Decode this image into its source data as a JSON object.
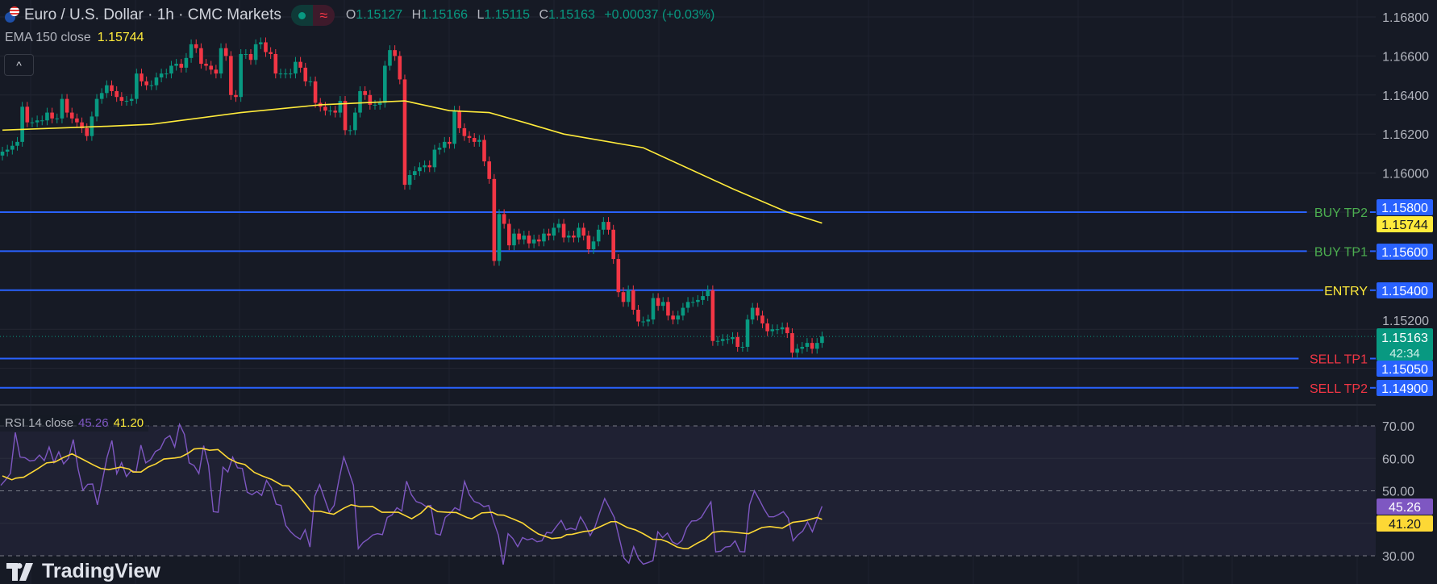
{
  "header": {
    "title": "Euro / U.S. Dollar · 1h · CMC Markets",
    "flag_icon": "eur-usd-flags-icon",
    "market_status_icon": "market-open-dot-icon",
    "data_mode_icon": "approx-wave-icon",
    "ohlc": {
      "o_label": "O",
      "o": "1.15127",
      "h_label": "H",
      "h": "1.15166",
      "l_label": "L",
      "l": "1.15115",
      "c_label": "C",
      "c": "1.15163",
      "change": "+0.00037 (+0.03%)"
    }
  },
  "ema_legend": {
    "label": "EMA 150 close",
    "value": "1.15744"
  },
  "collapse_icon": "^",
  "rsi_legend": {
    "label": "RSI 14 close",
    "rsi": "45.26",
    "ma": "41.20"
  },
  "brand": "TradingView",
  "colors": {
    "bg": "#161a25",
    "up": "#089981",
    "down": "#f23645",
    "ema": "#ffeb3b",
    "level": "#2962ff",
    "rsi": "#7e57c2",
    "rsi_ma": "#fdd835"
  },
  "price_axis": {
    "ticks": [
      "1.16800",
      "1.16600",
      "1.16400",
      "1.16200",
      "1.16000",
      "1.15200"
    ]
  },
  "rsi_axis": {
    "ticks": [
      "70.00",
      "60.00",
      "50.00",
      "30.00"
    ]
  },
  "levels": [
    {
      "label": "BUY TP2",
      "price": "1.15800",
      "color": "#4caf50"
    },
    {
      "label": "BUY TP1",
      "price": "1.15600",
      "color": "#4caf50"
    },
    {
      "label": "ENTRY",
      "price": "1.15400",
      "color": "#ffeb3b"
    },
    {
      "label": "SELL TP1",
      "price": "1.15050",
      "color": "#f23645"
    },
    {
      "label": "SELL TP2",
      "price": "1.14900",
      "color": "#f23645"
    }
  ],
  "ema_badge": "1.15744",
  "last_price": {
    "price": "1.15163",
    "countdown": "42:34"
  },
  "rsi_badges": {
    "rsi": "45.26",
    "ma": "41.20"
  },
  "chart_data": {
    "type": "candlestick",
    "timeframe": "1h",
    "closes": [
      1.1611,
      1.1612,
      1.1614,
      1.1616,
      1.1634,
      1.1626,
      1.1626,
      1.1627,
      1.1627,
      1.1631,
      1.1628,
      1.1628,
      1.1638,
      1.1631,
      1.1628,
      1.1626,
      1.1623,
      1.1619,
      1.1629,
      1.1638,
      1.1641,
      1.1645,
      1.1642,
      1.1639,
      1.1637,
      1.1637,
      1.1638,
      1.1651,
      1.1647,
      1.1645,
      1.1645,
      1.1649,
      1.1651,
      1.1651,
      1.1655,
      1.1656,
      1.1654,
      1.1659,
      1.1666,
      1.1664,
      1.1656,
      1.1655,
      1.1653,
      1.1651,
      1.1664,
      1.166,
      1.164,
      1.1639,
      1.1661,
      1.1661,
      1.1658,
      1.1666,
      1.1667,
      1.1662,
      1.1661,
      1.1651,
      1.1651,
      1.1651,
      1.1651,
      1.1657,
      1.1654,
      1.1647,
      1.1647,
      1.1636,
      1.1634,
      1.1632,
      1.1632,
      1.1631,
      1.1637,
      1.1622,
      1.1622,
      1.1631,
      1.1642,
      1.164,
      1.1635,
      1.1635,
      1.1636,
      1.1655,
      1.1663,
      1.166,
      1.1648,
      1.1594,
      1.1599,
      1.1601,
      1.1603,
      1.1604,
      1.1603,
      1.1612,
      1.1613,
      1.1616,
      1.1615,
      1.1632,
      1.1623,
      1.1619,
      1.1618,
      1.1616,
      1.1617,
      1.1606,
      1.1597,
      1.1555,
      1.1579,
      1.1574,
      1.1563,
      1.1569,
      1.1566,
      1.1568,
      1.1564,
      1.1566,
      1.1565,
      1.1569,
      1.1568,
      1.1572,
      1.1574,
      1.1567,
      1.1568,
      1.1567,
      1.1572,
      1.1568,
      1.1561,
      1.1565,
      1.1571,
      1.1575,
      1.1571,
      1.1556,
      1.1539,
      1.1534,
      1.154,
      1.153,
      1.1524,
      1.1524,
      1.1525,
      1.1536,
      1.1532,
      1.1534,
      1.1527,
      1.1525,
      1.1527,
      1.1531,
      1.1534,
      1.1534,
      1.1535,
      1.1537,
      1.154,
      1.1514,
      1.1514,
      1.1515,
      1.1515,
      1.1516,
      1.1511,
      1.1511,
      1.1525,
      1.1531,
      1.1527,
      1.1523,
      1.1519,
      1.152,
      1.152,
      1.1521,
      1.1518,
      1.1508,
      1.151,
      1.1511,
      1.1513,
      1.151,
      1.1513,
      1.15163
    ],
    "ema150": [
      [
        0,
        1.1622
      ],
      [
        21,
        1.1624
      ],
      [
        30,
        1.1625
      ],
      [
        48,
        1.1631
      ],
      [
        64,
        1.1635
      ],
      [
        81,
        1.1637
      ],
      [
        90,
        1.1632
      ],
      [
        98,
        1.1631
      ],
      [
        105,
        1.1626
      ],
      [
        113,
        1.162
      ],
      [
        129,
        1.1613
      ],
      [
        147,
        1.1592
      ],
      [
        158,
        1.158
      ],
      [
        165,
        1.15744
      ]
    ],
    "price_range": [
      1.1465,
      1.169
    ],
    "rsi": {
      "range": [
        20,
        80
      ],
      "bands": [
        30,
        50,
        70
      ],
      "values": [
        51.7,
        53.4,
        55.4,
        68.0,
        60.4,
        60.2,
        59.2,
        59.4,
        61.0,
        59.3,
        63.5,
        58.7,
        62.0,
        58.3,
        60.0,
        65.8,
        56.7,
        50.2,
        52.0,
        52.1,
        45.7,
        53.0,
        60.4,
        65.5,
        55.3,
        58.7,
        54.4,
        56.3,
        55.8,
        64.1,
        58.6,
        59.6,
        62.1,
        62.9,
        66.0,
        67.0,
        63.5,
        70.5,
        67.4,
        58.6,
        57.8,
        55.3,
        63.9,
        57.9,
        43.6,
        43.4,
        57.3,
        55.8,
        60.4,
        57.1,
        56.9,
        49.6,
        48.8,
        49.8,
        48.6,
        53.2,
        50.9,
        45.9,
        45.5,
        39.3,
        37.4,
        36.0,
        35.1,
        38.0,
        32.7,
        48.4,
        51.9,
        47.6,
        43.4,
        45.5,
        53.4,
        60.4,
        56.1,
        51.7,
        32.2,
        34.1,
        35.1,
        36.4,
        36.8,
        36.5,
        41.8,
        42.6,
        44.8,
        43.8,
        53.0,
        48.8,
        46.7,
        46.2,
        45.2,
        45.5,
        36.8,
        36.4,
        41.8,
        43.0,
        44.8,
        44.0,
        52.9,
        48.8,
        46.7,
        46.2,
        45.1,
        45.5,
        40.6,
        36.4,
        27.3,
        36.8,
        35.3,
        32.8,
        35.6,
        34.9,
        35.3,
        34.3,
        34.6,
        37.2,
        37.0,
        39.0,
        40.9,
        38.0,
        38.5,
        38.0,
        42.0,
        39.5,
        36.2,
        38.9,
        43.4,
        47.6,
        44.7,
        41.8,
        35.6,
        29.3,
        27.7,
        32.8,
        29.1,
        27.4,
        27.9,
        28.5,
        37.4,
        35.6,
        37.0,
        34.3,
        33.5,
        34.7,
        38.7,
        40.7,
        40.8,
        41.8,
        44.3,
        46.6,
        31.2,
        31.4,
        32.7,
        32.9,
        34.6,
        31.3,
        31.2,
        45.7,
        50.0,
        47.3,
        44.4,
        42.0,
        42.0,
        42.7,
        43.6,
        41.6,
        34.6,
        36.4,
        37.6,
        40.4,
        37.4,
        41.4,
        45.26
      ],
      "ma": [
        [
          0,
          54.6
        ],
        [
          1.9,
          53.4
        ],
        [
          2.7,
          53.9
        ],
        [
          4.3,
          54.2
        ],
        [
          7.0,
          56.7
        ],
        [
          8.9,
          58.6
        ],
        [
          10.6,
          58.9
        ],
        [
          12.2,
          60.2
        ],
        [
          14.0,
          61.4
        ],
        [
          16.3,
          59.6
        ],
        [
          18.4,
          57.9
        ],
        [
          19.8,
          56.9
        ],
        [
          21.4,
          56.5
        ],
        [
          23.8,
          57.3
        ],
        [
          25.5,
          56.7
        ],
        [
          26.3,
          55.8
        ],
        [
          27.9,
          55.8
        ],
        [
          29.3,
          57.3
        ],
        [
          30.9,
          58.3
        ],
        [
          32.5,
          59.8
        ],
        [
          34.7,
          60.1
        ],
        [
          35.9,
          60.4
        ],
        [
          37.4,
          61.6
        ],
        [
          38.6,
          62.9
        ],
        [
          40.1,
          63.1
        ],
        [
          41.7,
          62.5
        ],
        [
          43.4,
          62.7
        ],
        [
          45.5,
          60.0
        ],
        [
          47.2,
          58.7
        ],
        [
          48.8,
          58.1
        ],
        [
          50.7,
          55.7
        ],
        [
          52.3,
          54.6
        ],
        [
          54.2,
          53.5
        ],
        [
          56.4,
          51.6
        ],
        [
          57.7,
          51.5
        ],
        [
          59.6,
          48.6
        ],
        [
          62.1,
          43.7
        ],
        [
          64.0,
          43.7
        ],
        [
          65.3,
          43.2
        ],
        [
          66.7,
          42.8
        ],
        [
          68.8,
          44.7
        ],
        [
          70.2,
          45.7
        ],
        [
          72.1,
          45.1
        ],
        [
          74.5,
          45.2
        ],
        [
          76.4,
          43.4
        ],
        [
          79.7,
          43.4
        ],
        [
          82.4,
          41.4
        ],
        [
          84.3,
          43.2
        ],
        [
          85.7,
          45.3
        ],
        [
          87.6,
          43.6
        ],
        [
          89.5,
          43.4
        ],
        [
          91.4,
          43.3
        ],
        [
          93.5,
          41.8
        ],
        [
          94.5,
          41.4
        ],
        [
          96.5,
          43.2
        ],
        [
          98.6,
          43.4
        ],
        [
          99.7,
          42.6
        ],
        [
          100.9,
          42.5
        ],
        [
          103.0,
          41.2
        ],
        [
          104.7,
          40.1
        ],
        [
          106.3,
          38.3
        ],
        [
          107.9,
          36.7
        ],
        [
          110.6,
          35.3
        ],
        [
          112.5,
          35.6
        ],
        [
          113.6,
          36.5
        ],
        [
          114.7,
          36.6
        ],
        [
          117.1,
          37.5
        ],
        [
          118.5,
          37.7
        ],
        [
          120.4,
          39.0
        ],
        [
          122.5,
          40.5
        ],
        [
          123.6,
          40.5
        ],
        [
          125.8,
          38.7
        ],
        [
          127.4,
          38.0
        ],
        [
          129.0,
          36.8
        ],
        [
          130.9,
          35.1
        ],
        [
          132.6,
          35.0
        ],
        [
          133.9,
          34.3
        ],
        [
          135.8,
          32.7
        ],
        [
          137.2,
          32.2
        ],
        [
          138.0,
          32.2
        ],
        [
          139.9,
          33.9
        ],
        [
          141.5,
          35.1
        ],
        [
          143.0,
          37.2
        ],
        [
          144.8,
          37.6
        ],
        [
          146.9,
          37.3
        ],
        [
          150.2,
          36.8
        ],
        [
          152.9,
          38.7
        ],
        [
          154.5,
          39.0
        ],
        [
          157.0,
          38.5
        ],
        [
          159.1,
          40.3
        ],
        [
          161.6,
          40.8
        ],
        [
          164.0,
          41.8
        ],
        [
          165,
          41.2
        ]
      ]
    }
  }
}
